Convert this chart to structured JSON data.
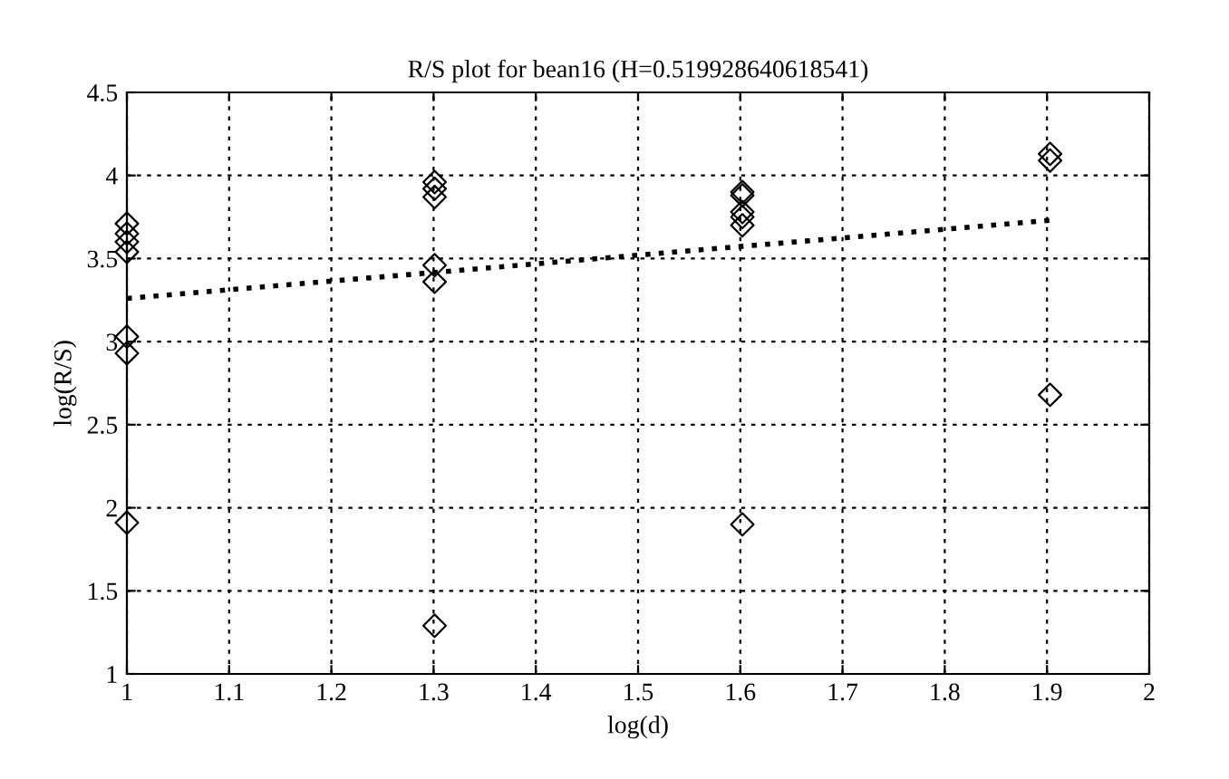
{
  "chart_data": {
    "type": "scatter",
    "title": "R/S plot for bean16 (H=0.519928640618541)",
    "xlabel": "log(d)",
    "ylabel": "log(R/S)",
    "xlim": [
      1,
      2
    ],
    "xticks": [
      1,
      1.1,
      1.2,
      1.3,
      1.4,
      1.5,
      1.6,
      1.7,
      1.8,
      1.9,
      2
    ],
    "ylim": [
      1,
      4.5
    ],
    "yticks": [
      1,
      1.5,
      2,
      2.5,
      3,
      3.5,
      4,
      4.5
    ],
    "grid": true,
    "legend": false,
    "series": [
      {
        "marker": "diamond",
        "color": "#000000",
        "x": [
          1,
          1,
          1,
          1,
          1,
          1,
          1,
          1.301,
          1.301,
          1.301,
          1.301,
          1.301,
          1.301,
          1.602,
          1.602,
          1.602,
          1.602,
          1.602,
          1.602,
          1.903,
          1.903,
          1.903
        ],
        "values": [
          3.71,
          3.65,
          3.6,
          3.54,
          3.03,
          2.93,
          1.91,
          3.96,
          3.92,
          3.87,
          3.46,
          3.36,
          1.29,
          3.9,
          3.88,
          3.78,
          3.75,
          3.7,
          1.9,
          4.13,
          4.09,
          2.68
        ]
      },
      {
        "type": "line",
        "line_style": "dotted",
        "marker": "none",
        "color": "#000000",
        "x": [
          1,
          1.903
        ],
        "values": [
          3.26,
          3.73
        ]
      }
    ]
  }
}
